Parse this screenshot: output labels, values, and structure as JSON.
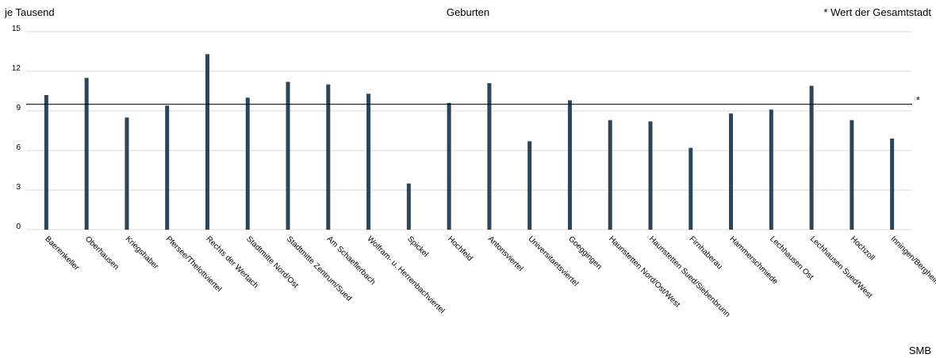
{
  "chart_data": {
    "type": "bar",
    "title": "Geburten",
    "ylabel": "je Tausend",
    "legend_note": "* Wert der Gesamtstadt",
    "reference_marker": "*",
    "source": "SMB",
    "ylim": [
      0,
      15
    ],
    "yticks": [
      0,
      3,
      6,
      9,
      12,
      15
    ],
    "grid": true,
    "bar_color": "#2c4559",
    "reference_line": {
      "label": "Wert der Gesamtstadt",
      "value": 9.5
    },
    "categories": [
      "Baerenkeller",
      "Oberhausen",
      "Kriegshaber",
      "Pfersee/Thelottviertel",
      "Rechts der Wertach",
      "Stadtmitte Nord/Ost",
      "Stadtmitte Zentrum/Sued",
      "Am Schaeflerbach",
      "Wolfram- u. Herrenbachviertel",
      "Spickel",
      "Hochfeld",
      "Antonsviertel",
      "Universitaetsviertel",
      "Goeggingen",
      "Haunstetten Nord/Ost/West",
      "Haunstetten Sued/Siebenbrunn",
      "Firnhaberau",
      "Hammerschmiede",
      "Lechhausen Ost",
      "Lechhausen Sued/West",
      "Hochzoll",
      "Inningen/Bergheim"
    ],
    "values": [
      10.2,
      11.5,
      8.5,
      9.4,
      13.3,
      10.0,
      11.2,
      11.0,
      10.3,
      3.5,
      9.6,
      11.1,
      6.7,
      9.8,
      8.3,
      8.2,
      6.2,
      8.8,
      9.1,
      10.9,
      8.3,
      6.9
    ]
  }
}
